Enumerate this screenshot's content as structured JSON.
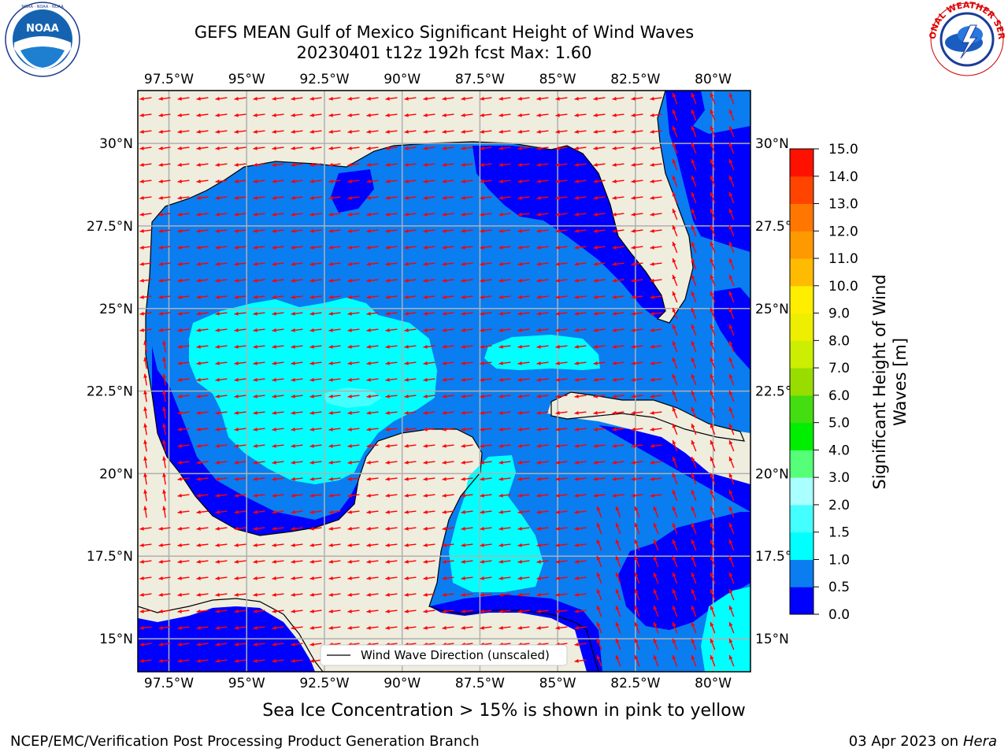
{
  "title": {
    "line1": "GEFS MEAN Gulf of Mexico Significant Height of Wind Waves",
    "line2": "20230401 t12z 192h fcst   Max: 1.60"
  },
  "logos": {
    "left": {
      "icon": "noaa-logo",
      "text": "NOAA",
      "ring_text": "NATIONAL OCEANIC AND ATMOSPHERIC ADMINISTRATION · U.S. DEPARTMENT OF COMMERCE"
    },
    "right": {
      "icon": "national-weather-service-logo",
      "ring_text": "NATIONAL WEATHER SERVICE"
    }
  },
  "map": {
    "lon_range": [
      -98.5,
      -78.8
    ],
    "lat_range": [
      14.0,
      31.6
    ],
    "lon_ticks": [
      "97.5°W",
      "95°W",
      "92.5°W",
      "90°W",
      "87.5°W",
      "85°W",
      "82.5°W",
      "80°W"
    ],
    "lat_ticks": [
      "15°N",
      "17.5°N",
      "20°N",
      "22.5°N",
      "25°N",
      "27.5°N",
      "30°N"
    ],
    "colors": {
      "land": "#efedde",
      "coast": "#000000",
      "grid": "#b0b0b0",
      "arrow": "#ff0000"
    },
    "legend_label": "Wind Wave Direction (unscaled)"
  },
  "colorbar": {
    "label": "Significant Height of Wind Waves [m]",
    "label_lines": [
      "Significant Height of Wind",
      "Waves [m]"
    ],
    "ticks": [
      "0.0",
      "0.5",
      "1.0",
      "1.5",
      "2.0",
      "3.0",
      "4.0",
      "5.0",
      "6.0",
      "7.0",
      "8.0",
      "9.0",
      "10.0",
      "11.0",
      "12.0",
      "13.0",
      "14.0",
      "15.0"
    ],
    "colors": [
      "#0000ff",
      "#0a7df0",
      "#00ffff",
      "#44ffff",
      "#aaffff",
      "#55ff77",
      "#00ee00",
      "#44dd11",
      "#99dd00",
      "#ccee00",
      "#eeee00",
      "#ffee00",
      "#ffbb00",
      "#ff9900",
      "#ff7700",
      "#ff4400",
      "#ff1100"
    ]
  },
  "caption": "Sea Ice Concentration > 15% is shown in pink to yellow",
  "footer": {
    "left": "NCEP/EMC/Verification Post Processing Product Generation Branch",
    "right_prefix": "03 Apr 2023 on ",
    "right_host": "Hera"
  }
}
